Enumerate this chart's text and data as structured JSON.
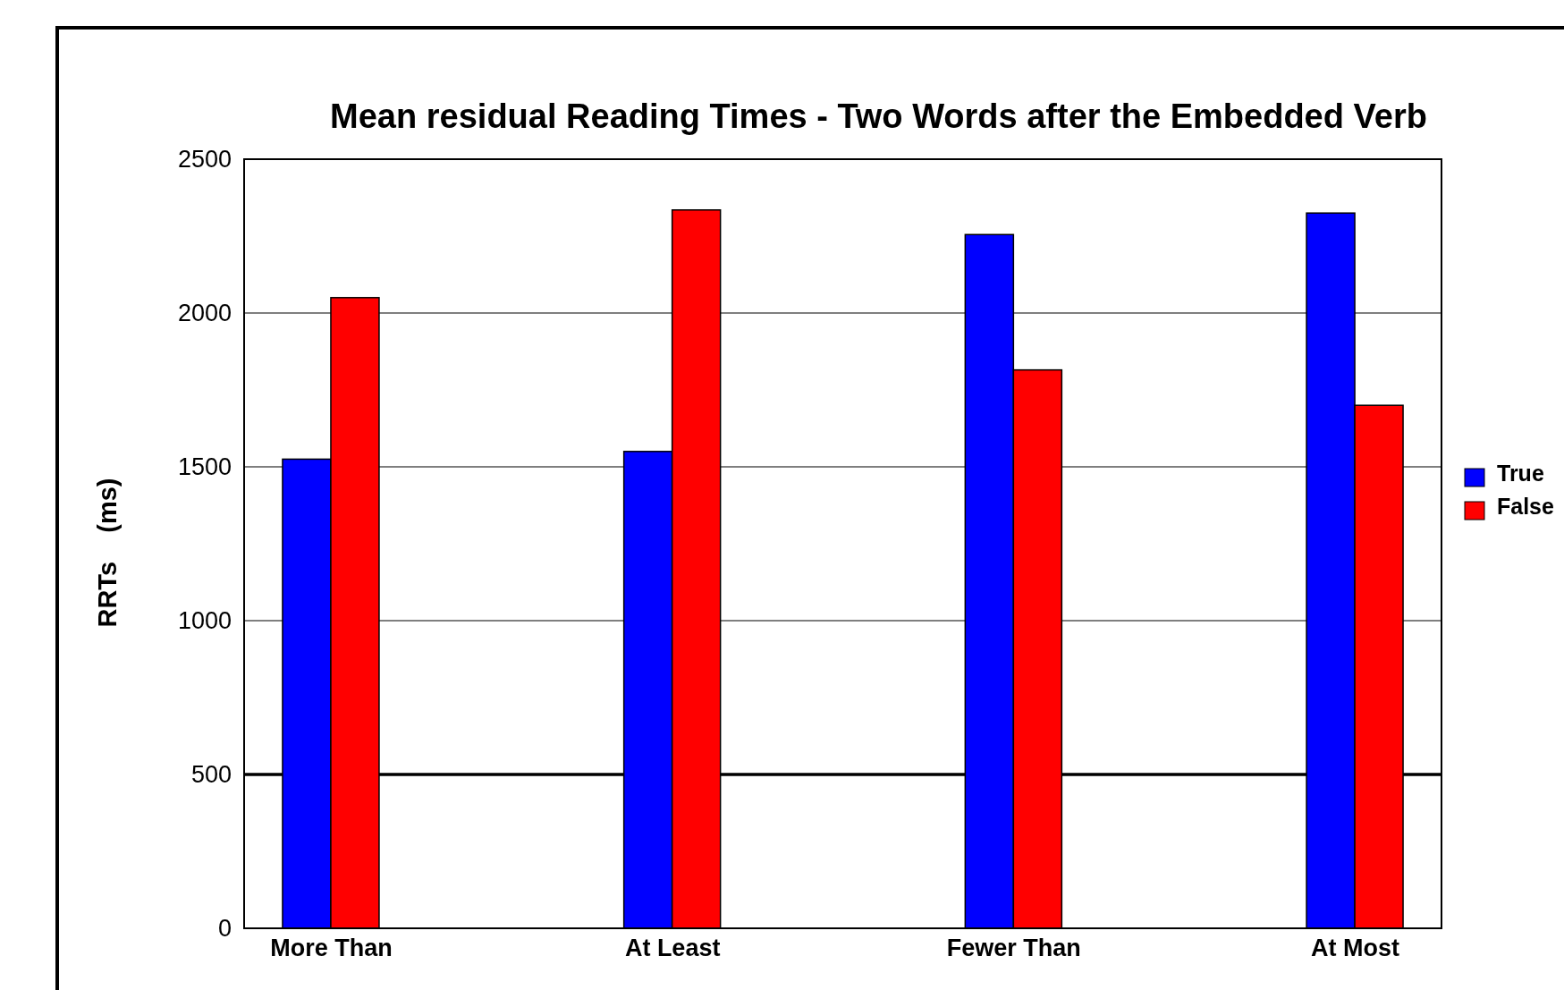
{
  "chart_data": {
    "type": "bar",
    "title": "Mean residual Reading Times - Two Words after the Embedded Verb",
    "ylabel": "RRTs    (ms)",
    "categories": [
      "More Than",
      "At Least",
      "Fewer Than",
      "At Most"
    ],
    "series": [
      {
        "name": "True",
        "color": "#0000ff",
        "values": [
          1525,
          1550,
          2255,
          2325
        ]
      },
      {
        "name": "False",
        "color": "#ff0000",
        "values": [
          2050,
          2335,
          1815,
          1700
        ]
      }
    ],
    "ylim": [
      0,
      2500
    ],
    "yticks": [
      0,
      500,
      1000,
      1500,
      2000,
      2500
    ],
    "grid": "y",
    "legend": "right",
    "ref_lines": [
      {
        "axis": "y",
        "value": 500,
        "color": "#000000"
      }
    ]
  }
}
